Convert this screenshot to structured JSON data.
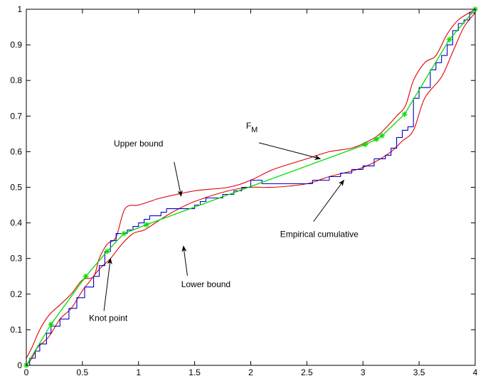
{
  "chart_data": {
    "type": "line",
    "title": "",
    "xlabel": "",
    "ylabel": "",
    "xlim": [
      0,
      4
    ],
    "ylim": [
      0,
      1
    ],
    "x_ticks": [
      "0",
      "0.5",
      "1",
      "1.5",
      "2",
      "2.5",
      "3",
      "3.5",
      "4"
    ],
    "y_ticks": [
      "0",
      "0.1",
      "0.2",
      "0.3",
      "0.4",
      "0.5",
      "0.6",
      "0.7",
      "0.8",
      "0.9",
      "1"
    ],
    "grid": false,
    "colors": {
      "empirical": "#0000cc",
      "bounds": "#e00000",
      "fit": "#00dd00",
      "knots": "#00dd00"
    },
    "series": [
      {
        "key": "upper",
        "style": "smooth",
        "points": [
          [
            0,
            0.02
          ],
          [
            0.05,
            0.05
          ],
          [
            0.12,
            0.1
          ],
          [
            0.2,
            0.14
          ],
          [
            0.3,
            0.17
          ],
          [
            0.4,
            0.2
          ],
          [
            0.5,
            0.24
          ],
          [
            0.6,
            0.25
          ],
          [
            0.65,
            0.3
          ],
          [
            0.72,
            0.34
          ],
          [
            0.8,
            0.36
          ],
          [
            0.88,
            0.44
          ],
          [
            1.0,
            0.45
          ],
          [
            1.1,
            0.46
          ],
          [
            1.2,
            0.47
          ],
          [
            1.5,
            0.49
          ],
          [
            1.8,
            0.5
          ],
          [
            2.0,
            0.52
          ],
          [
            2.2,
            0.55
          ],
          [
            2.5,
            0.58
          ],
          [
            2.7,
            0.6
          ],
          [
            2.9,
            0.61
          ],
          [
            3.05,
            0.63
          ],
          [
            3.15,
            0.65
          ],
          [
            3.3,
            0.7
          ],
          [
            3.38,
            0.73
          ],
          [
            3.45,
            0.8
          ],
          [
            3.55,
            0.85
          ],
          [
            3.65,
            0.87
          ],
          [
            3.75,
            0.93
          ],
          [
            3.85,
            0.97
          ],
          [
            4,
            1
          ]
        ]
      },
      {
        "key": "lower",
        "style": "smooth",
        "points": [
          [
            0,
            0
          ],
          [
            0.05,
            0.02
          ],
          [
            0.1,
            0.05
          ],
          [
            0.2,
            0.08
          ],
          [
            0.3,
            0.13
          ],
          [
            0.4,
            0.16
          ],
          [
            0.5,
            0.21
          ],
          [
            0.55,
            0.23
          ],
          [
            0.65,
            0.27
          ],
          [
            0.75,
            0.3
          ],
          [
            0.85,
            0.34
          ],
          [
            0.95,
            0.37
          ],
          [
            1.05,
            0.38
          ],
          [
            1.15,
            0.4
          ],
          [
            1.3,
            0.43
          ],
          [
            1.5,
            0.46
          ],
          [
            1.8,
            0.49
          ],
          [
            2.0,
            0.5
          ],
          [
            2.2,
            0.5
          ],
          [
            2.5,
            0.51
          ],
          [
            2.7,
            0.53
          ],
          [
            2.95,
            0.55
          ],
          [
            3.1,
            0.57
          ],
          [
            3.25,
            0.6
          ],
          [
            3.35,
            0.63
          ],
          [
            3.45,
            0.66
          ],
          [
            3.55,
            0.75
          ],
          [
            3.7,
            0.81
          ],
          [
            3.8,
            0.88
          ],
          [
            3.9,
            0.95
          ],
          [
            4,
            0.99
          ]
        ]
      },
      {
        "key": "empirical",
        "style": "step",
        "points": [
          [
            0,
            0
          ],
          [
            0.03,
            0.02
          ],
          [
            0.08,
            0.04
          ],
          [
            0.12,
            0.06
          ],
          [
            0.18,
            0.09
          ],
          [
            0.22,
            0.11
          ],
          [
            0.3,
            0.13
          ],
          [
            0.38,
            0.16
          ],
          [
            0.45,
            0.19
          ],
          [
            0.52,
            0.22
          ],
          [
            0.6,
            0.25
          ],
          [
            0.65,
            0.28
          ],
          [
            0.7,
            0.32
          ],
          [
            0.75,
            0.35
          ],
          [
            0.8,
            0.37
          ],
          [
            0.9,
            0.38
          ],
          [
            0.95,
            0.39
          ],
          [
            1.0,
            0.4
          ],
          [
            1.05,
            0.41
          ],
          [
            1.1,
            0.42
          ],
          [
            1.2,
            0.43
          ],
          [
            1.25,
            0.44
          ],
          [
            1.5,
            0.45
          ],
          [
            1.55,
            0.46
          ],
          [
            1.6,
            0.47
          ],
          [
            1.75,
            0.48
          ],
          [
            1.85,
            0.49
          ],
          [
            1.92,
            0.5
          ],
          [
            2.0,
            0.52
          ],
          [
            2.1,
            0.51
          ],
          [
            2.3,
            0.51
          ],
          [
            2.55,
            0.52
          ],
          [
            2.7,
            0.53
          ],
          [
            2.8,
            0.54
          ],
          [
            2.9,
            0.55
          ],
          [
            3.0,
            0.56
          ],
          [
            3.1,
            0.58
          ],
          [
            3.2,
            0.59
          ],
          [
            3.25,
            0.61
          ],
          [
            3.3,
            0.64
          ],
          [
            3.35,
            0.66
          ],
          [
            3.4,
            0.67
          ],
          [
            3.45,
            0.75
          ],
          [
            3.5,
            0.78
          ],
          [
            3.6,
            0.83
          ],
          [
            3.65,
            0.85
          ],
          [
            3.7,
            0.87
          ],
          [
            3.75,
            0.9
          ],
          [
            3.8,
            0.94
          ],
          [
            3.85,
            0.96
          ],
          [
            3.9,
            0.97
          ],
          [
            3.95,
            0.99
          ],
          [
            4.0,
            1.0
          ]
        ]
      },
      {
        "key": "fit",
        "style": "linear",
        "points": [
          [
            0,
            0
          ],
          [
            0.22,
            0.115
          ],
          [
            0.53,
            0.25
          ],
          [
            0.72,
            0.32
          ],
          [
            0.87,
            0.37
          ],
          [
            1.07,
            0.395
          ],
          [
            3.02,
            0.62
          ],
          [
            3.12,
            0.635
          ],
          [
            3.17,
            0.645
          ],
          [
            3.37,
            0.705
          ],
          [
            3.77,
            0.915
          ],
          [
            4,
            1
          ]
        ]
      }
    ],
    "knots": [
      [
        0,
        0
      ],
      [
        0.22,
        0.115
      ],
      [
        0.53,
        0.25
      ],
      [
        0.72,
        0.32
      ],
      [
        0.87,
        0.37
      ],
      [
        1.07,
        0.395
      ],
      [
        3.02,
        0.62
      ],
      [
        3.12,
        0.635
      ],
      [
        3.17,
        0.645
      ],
      [
        3.37,
        0.705
      ],
      [
        3.77,
        0.915
      ],
      [
        4,
        1
      ]
    ],
    "annotations": [
      {
        "key": "upper-bound",
        "text": "Upper bound",
        "anchor": [
          1.0,
          0.615
        ],
        "arrow_to": [
          1.38,
          0.475
        ]
      },
      {
        "key": "fm",
        "text": "F",
        "sub": "M",
        "anchor": [
          2.01,
          0.665
        ],
        "arrow_to": [
          2.62,
          0.58
        ]
      },
      {
        "key": "empirical-cumulative",
        "text": "Empirical cumulative",
        "anchor": [
          2.61,
          0.36
        ],
        "arrow_to": [
          2.83,
          0.52
        ]
      },
      {
        "key": "lower-bound",
        "text": "Lower bound",
        "anchor": [
          1.6,
          0.22
        ],
        "arrow_to": [
          1.4,
          0.335
        ]
      },
      {
        "key": "knot-point",
        "text": "Knot point",
        "anchor": [
          0.73,
          0.125
        ],
        "arrow_to": [
          0.75,
          0.3
        ]
      }
    ]
  }
}
